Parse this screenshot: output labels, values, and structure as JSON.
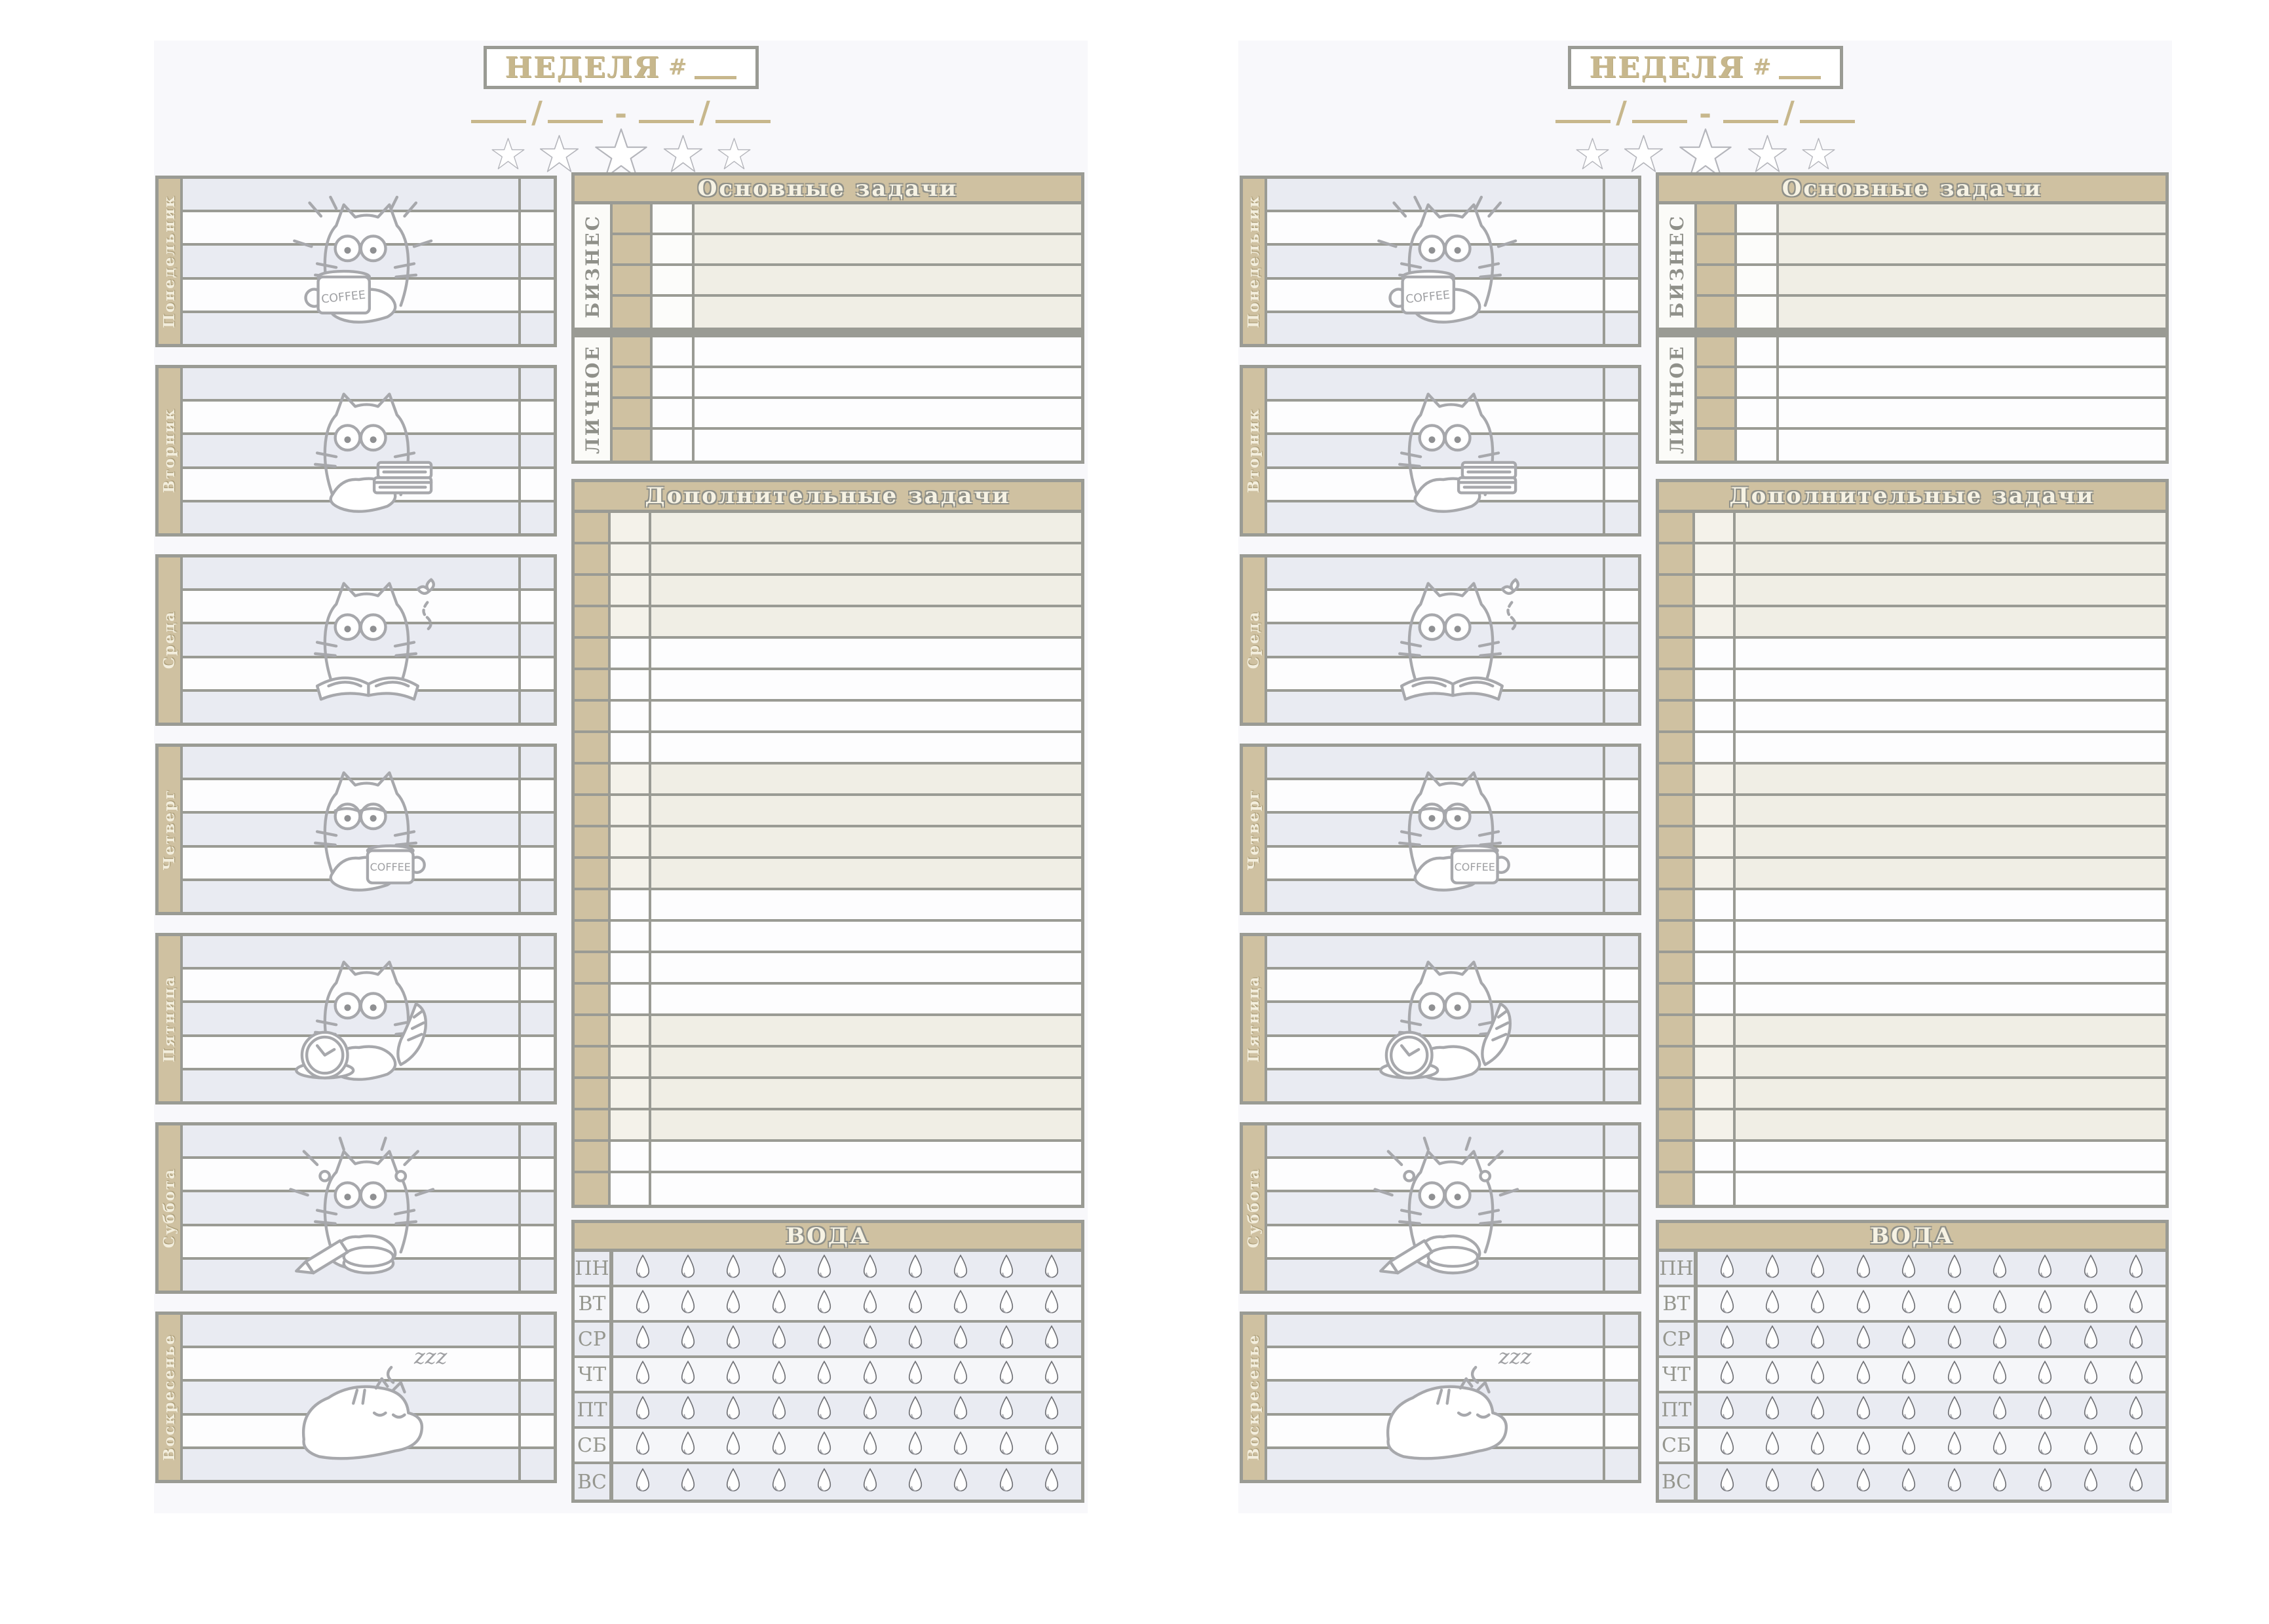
{
  "pages_count": 2,
  "page": {
    "header": {
      "title": "НЕДЕЛЯ",
      "hash": "#",
      "slash": "/",
      "dash": "-",
      "stars": 5,
      "star_sizes": [
        54,
        64,
        86,
        64,
        54
      ]
    },
    "sections": {
      "main_title": "Основные задачи",
      "business_label": "БИЗНЕС",
      "personal_label": "ЛИЧНОЕ",
      "additional_title": "Дополнительные задачи",
      "water_title": "ВОДА"
    },
    "days": [
      {
        "label": "Понедельник",
        "cat": "coffee-excited",
        "cat_text": "COFFEE"
      },
      {
        "label": "Вторник",
        "cat": "books",
        "cat_text": ""
      },
      {
        "label": "Среда",
        "cat": "reading-butterfly",
        "cat_text": ""
      },
      {
        "label": "Четверг",
        "cat": "tired-coffee",
        "cat_text": "COFFEE"
      },
      {
        "label": "Пятница",
        "cat": "clock-tail",
        "cat_text": ""
      },
      {
        "label": "Суббота",
        "cat": "startled-pencil",
        "cat_text": ""
      },
      {
        "label": "Воскресенье",
        "cat": "sleeping",
        "cat_text": "zzz"
      }
    ],
    "day_rows_per_block": 5,
    "business_rows": 4,
    "personal_rows": 4,
    "additional_rows": 22,
    "additional_color_groups": [
      "beige",
      "beige",
      "beige",
      "beige",
      "white",
      "white",
      "white",
      "white",
      "beige",
      "beige",
      "beige",
      "beige",
      "white",
      "white",
      "white",
      "white",
      "beige",
      "beige",
      "beige",
      "beige",
      "white",
      "white"
    ],
    "water_days": [
      "ПН",
      "ВТ",
      "СР",
      "ЧТ",
      "ПТ",
      "СБ",
      "ВС"
    ],
    "water_drops_per_day": 10
  },
  "colors": {
    "tan": "#cfc1a1",
    "border": "#9a9b94",
    "beige": "#f0eee5",
    "lavender": "#e9ebf2",
    "page_bg": "#f8f8fb",
    "label_gray": "#8f9089",
    "cream_text": "#f6f2e3",
    "title_tan": "#c7b78c",
    "sketch": "#a7a8ac"
  }
}
